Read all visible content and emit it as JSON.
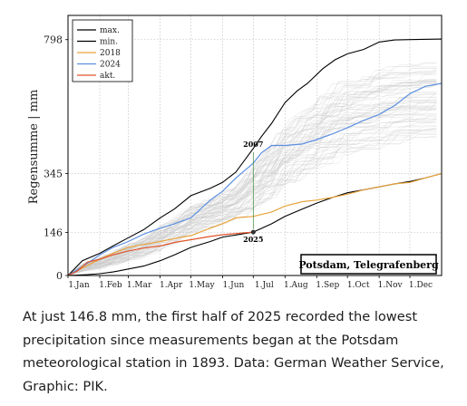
{
  "chart_data": {
    "type": "line",
    "ylabel": "Regensumme | mm",
    "x_ticks": [
      "1.Jan",
      "1.Feb",
      "1.Mar",
      "1.Apr",
      "1.May",
      "1.Jun",
      "1.Jul",
      "1.Aug",
      "1.Sep",
      "1.Oct",
      "1.Nov",
      "1.Dec"
    ],
    "x_tick_days": [
      1,
      32,
      60,
      91,
      121,
      152,
      182,
      213,
      244,
      274,
      305,
      335
    ],
    "xlim_days": [
      1,
      366
    ],
    "y_ticks": [
      0,
      146,
      345,
      798
    ],
    "ylim": [
      0,
      880
    ],
    "grid": true,
    "legend_position": "top-left",
    "location_box": "Potsdam, Telegrafenberg",
    "marker_2007_label": "2007",
    "marker_2025_label": "2025",
    "marker_2007_day": 182,
    "marker_2025_day": 182,
    "marker_2025_value": 146.8,
    "background_years_color": "#c8c8c8",
    "series": [
      {
        "name": "max.",
        "color": "#000000",
        "points": [
          [
            1,
            0
          ],
          [
            15,
            50
          ],
          [
            32,
            75
          ],
          [
            45,
            100
          ],
          [
            60,
            128
          ],
          [
            75,
            155
          ],
          [
            91,
            195
          ],
          [
            105,
            225
          ],
          [
            121,
            270
          ],
          [
            140,
            295
          ],
          [
            152,
            315
          ],
          [
            165,
            350
          ],
          [
            182,
            430
          ],
          [
            190,
            470
          ],
          [
            200,
            515
          ],
          [
            213,
            585
          ],
          [
            225,
            625
          ],
          [
            235,
            650
          ],
          [
            250,
            700
          ],
          [
            262,
            730
          ],
          [
            274,
            750
          ],
          [
            290,
            765
          ],
          [
            305,
            790
          ],
          [
            320,
            797
          ],
          [
            335,
            798
          ],
          [
            366,
            800
          ]
        ]
      },
      {
        "name": "min.",
        "color": "#000000",
        "points": [
          [
            1,
            0
          ],
          [
            20,
            3
          ],
          [
            32,
            6
          ],
          [
            45,
            12
          ],
          [
            60,
            22
          ],
          [
            75,
            32
          ],
          [
            91,
            50
          ],
          [
            105,
            70
          ],
          [
            121,
            95
          ],
          [
            140,
            115
          ],
          [
            152,
            130
          ],
          [
            165,
            137
          ],
          [
            182,
            147
          ],
          [
            200,
            175
          ],
          [
            213,
            200
          ],
          [
            230,
            225
          ],
          [
            244,
            245
          ],
          [
            260,
            265
          ],
          [
            274,
            280
          ],
          [
            290,
            290
          ],
          [
            305,
            300
          ],
          [
            320,
            310
          ],
          [
            335,
            318
          ],
          [
            350,
            330
          ],
          [
            366,
            345
          ]
        ]
      },
      {
        "name": "2018",
        "color": "#e8a33c",
        "points": [
          [
            1,
            0
          ],
          [
            15,
            25
          ],
          [
            32,
            55
          ],
          [
            45,
            75
          ],
          [
            60,
            95
          ],
          [
            75,
            105
          ],
          [
            91,
            115
          ],
          [
            105,
            125
          ],
          [
            121,
            135
          ],
          [
            140,
            160
          ],
          [
            152,
            175
          ],
          [
            165,
            195
          ],
          [
            182,
            200
          ],
          [
            200,
            215
          ],
          [
            213,
            235
          ],
          [
            230,
            250
          ],
          [
            244,
            255
          ],
          [
            260,
            265
          ],
          [
            274,
            275
          ],
          [
            290,
            290
          ],
          [
            305,
            300
          ],
          [
            320,
            310
          ],
          [
            335,
            315
          ],
          [
            350,
            330
          ],
          [
            366,
            345
          ]
        ]
      },
      {
        "name": "2024",
        "color": "#5b8fe0",
        "points": [
          [
            1,
            0
          ],
          [
            15,
            30
          ],
          [
            32,
            70
          ],
          [
            45,
            95
          ],
          [
            60,
            115
          ],
          [
            75,
            140
          ],
          [
            91,
            160
          ],
          [
            105,
            175
          ],
          [
            121,
            195
          ],
          [
            140,
            255
          ],
          [
            152,
            285
          ],
          [
            165,
            330
          ],
          [
            182,
            380
          ],
          [
            190,
            415
          ],
          [
            200,
            440
          ],
          [
            213,
            440
          ],
          [
            230,
            445
          ],
          [
            244,
            460
          ],
          [
            260,
            480
          ],
          [
            274,
            500
          ],
          [
            290,
            525
          ],
          [
            305,
            545
          ],
          [
            320,
            575
          ],
          [
            335,
            615
          ],
          [
            350,
            640
          ],
          [
            366,
            650
          ]
        ]
      },
      {
        "name": "akt.",
        "color": "#e0552b",
        "points": [
          [
            1,
            0
          ],
          [
            10,
            15
          ],
          [
            20,
            45
          ],
          [
            32,
            55
          ],
          [
            45,
            70
          ],
          [
            60,
            83
          ],
          [
            75,
            93
          ],
          [
            91,
            100
          ],
          [
            105,
            112
          ],
          [
            121,
            121
          ],
          [
            140,
            132
          ],
          [
            152,
            138
          ],
          [
            165,
            142
          ],
          [
            182,
            146.8
          ]
        ]
      }
    ]
  },
  "caption": "At just 146.8 mm, the first half of 2025 recorded the lowest precipitation since measurements began at the Potsdam meteorological station in 1893. Data: German Weather Service, Graphic: PIK."
}
